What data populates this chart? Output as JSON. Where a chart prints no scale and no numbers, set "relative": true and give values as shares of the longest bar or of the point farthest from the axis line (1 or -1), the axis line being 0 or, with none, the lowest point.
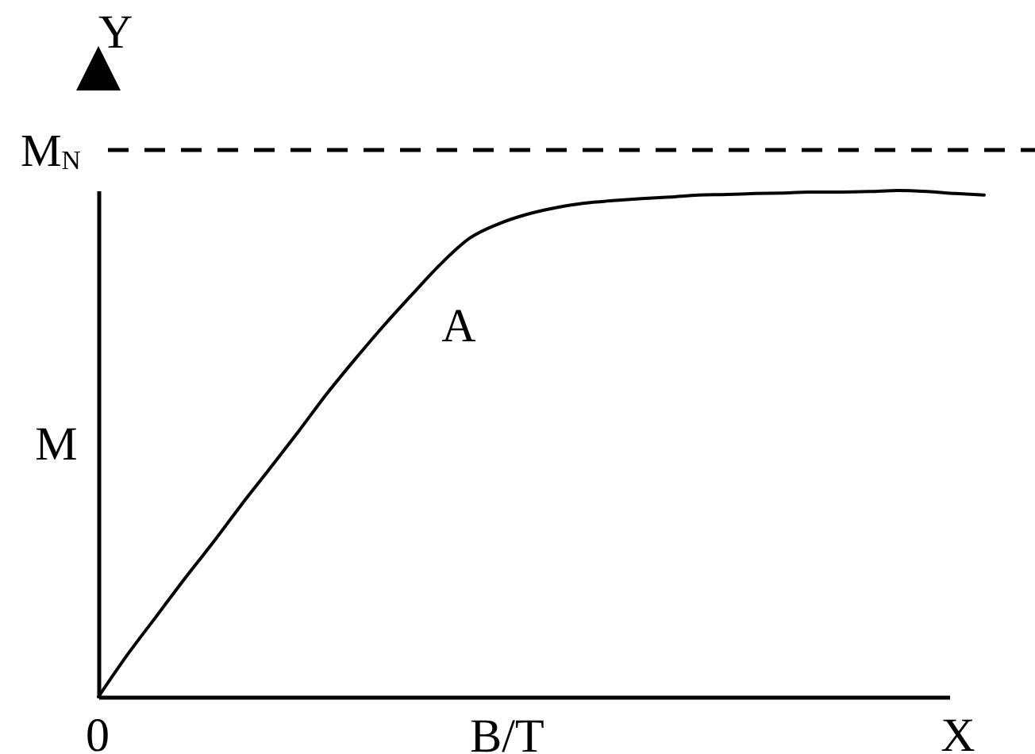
{
  "chart_data": {
    "type": "line",
    "relative": true,
    "xlabel": "B/T",
    "ylabel": "M",
    "line_style": "solid",
    "annotations": [
      "Y",
      "X",
      "0",
      "A"
    ],
    "categories": [
      null,
      null,
      null,
      null,
      null,
      null,
      null,
      null,
      null,
      null,
      null,
      null,
      null,
      null,
      null,
      null,
      null,
      null,
      null,
      null,
      null,
      null,
      null,
      null,
      null,
      null,
      null,
      null,
      null,
      null,
      null,
      null
    ],
    "series": [
      {
        "color": "#000000",
        "values": [
          0,
          0.082,
          0.157,
          0.232,
          0.304,
          0.379,
          0.451,
          0.524,
          0.599,
          0.668,
          0.734,
          0.796,
          0.856,
          0.906,
          0.934,
          0.953,
          0.966,
          0.975,
          0.98,
          0.984,
          0.987,
          0.991,
          0.992,
          0.994,
          0.995,
          0.997,
          0.997,
          0.998,
          1.0,
          0.998,
          0.994,
          0.991
        ]
      }
    ],
    "ref_lines": [
      {
        "axis": "y",
        "value": 1.08,
        "label": "M$_{N}$",
        "line_style": "dashed",
        "color": "#000000"
      }
    ]
  }
}
